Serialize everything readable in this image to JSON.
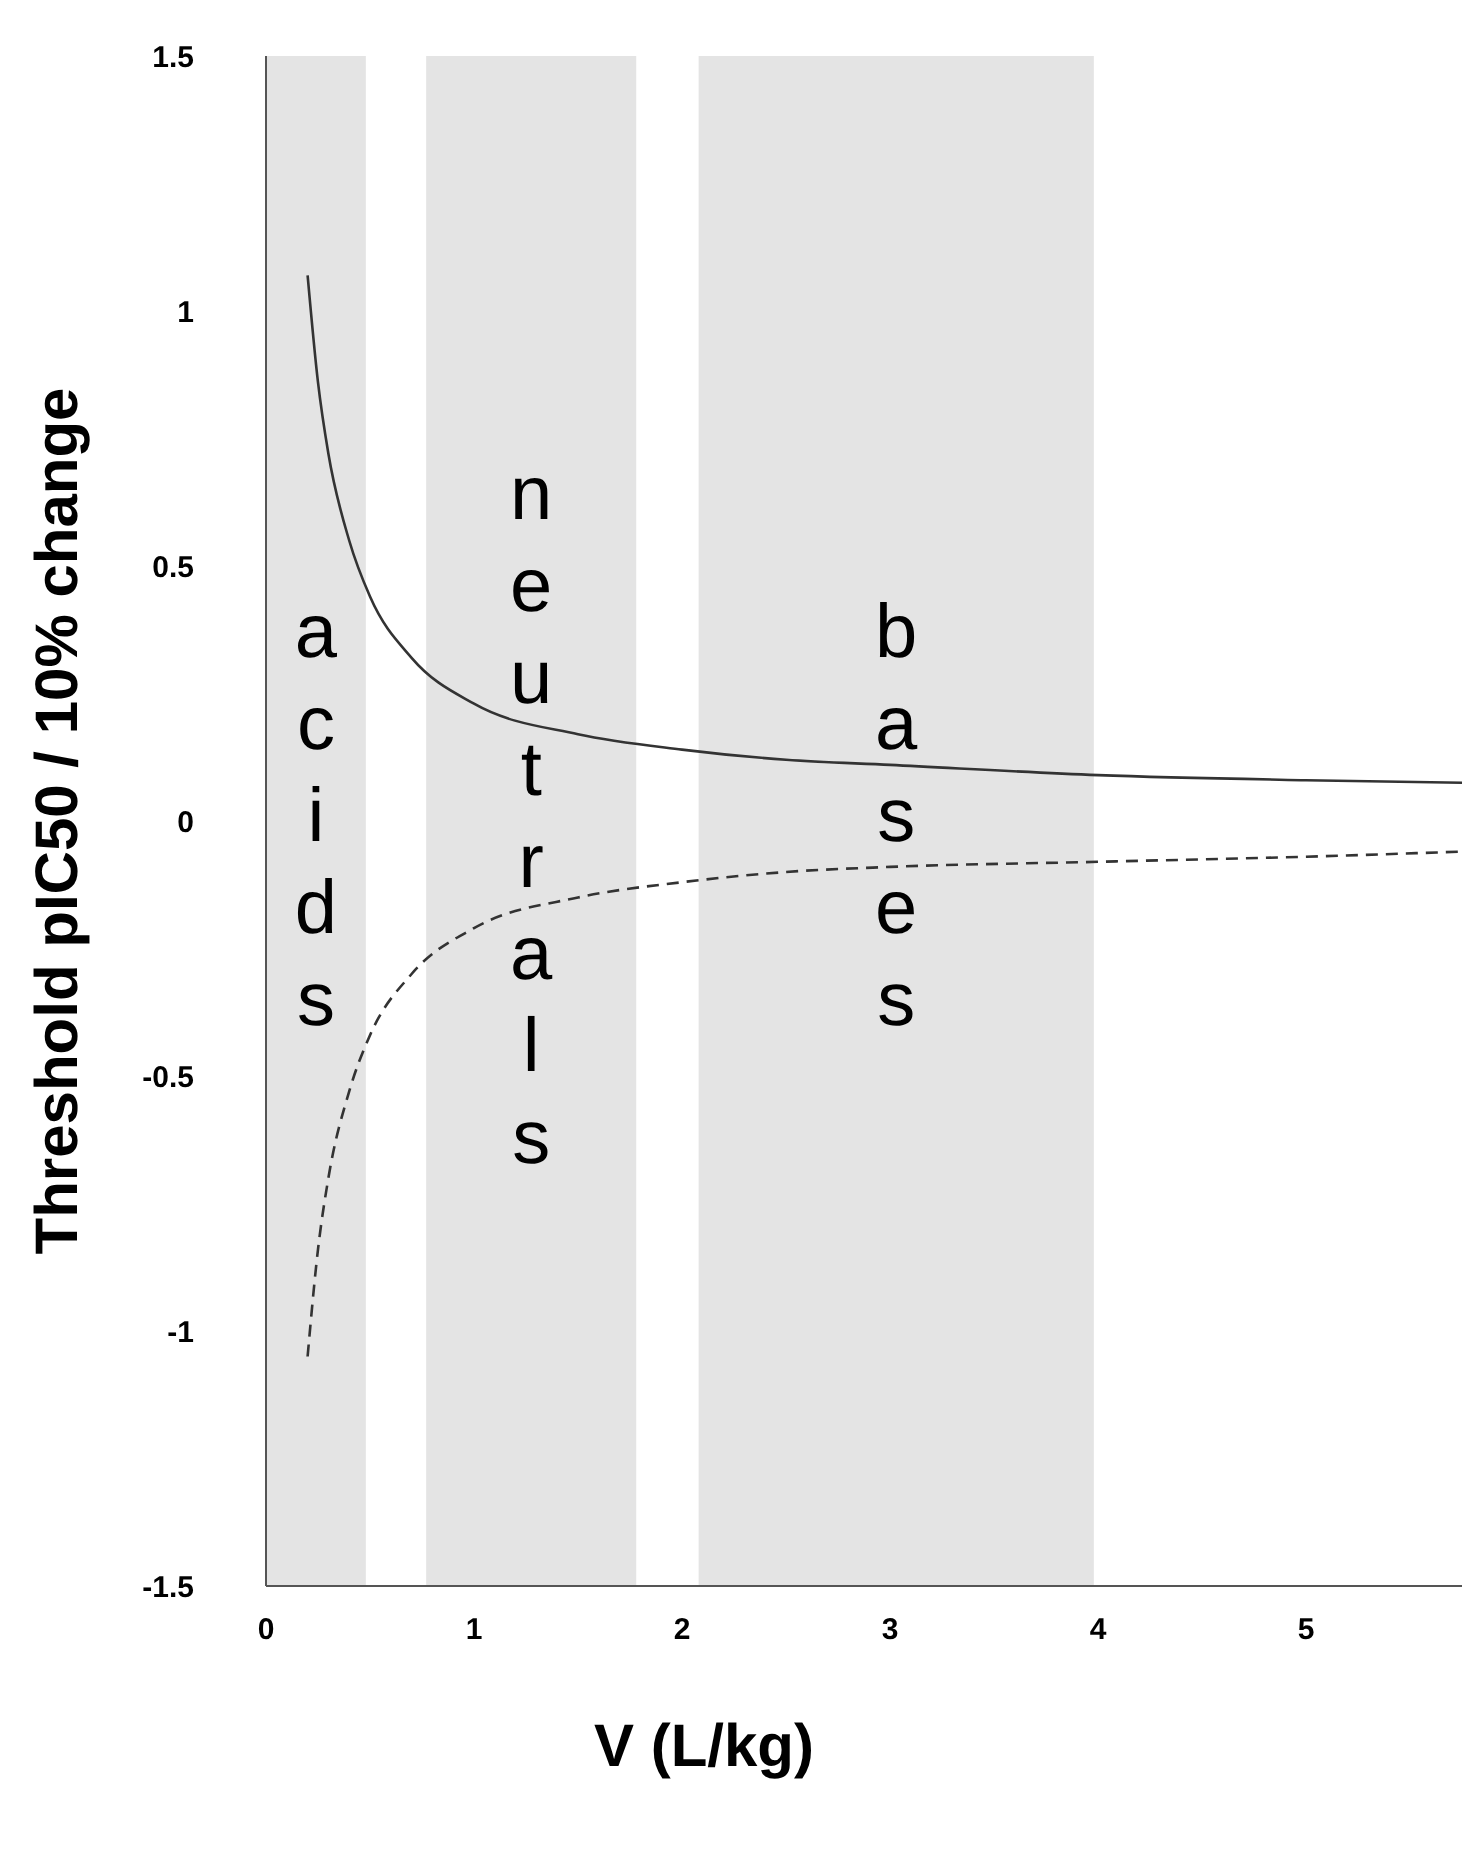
{
  "chart_data": {
    "type": "line",
    "xlabel": "V (L/kg)",
    "ylabel": "Threshold pIC50 / 10% change",
    "x": [
      0.2,
      0.25,
      0.3,
      0.4,
      0.5,
      0.7,
      1.0,
      1.5,
      2.0,
      2.5,
      3.0,
      4.0,
      5.0,
      5.75
    ],
    "series": [
      {
        "color": "#333333",
        "line_style": "solid",
        "values": [
          1.07,
          0.86,
          0.72,
          0.55,
          0.44,
          0.32,
          0.23,
          0.17,
          0.14,
          0.12,
          0.11,
          0.09,
          0.08,
          0.075
        ]
      },
      {
        "color": "#333333",
        "line_style": "dashed",
        "values": [
          -1.05,
          -0.84,
          -0.7,
          -0.53,
          -0.42,
          -0.3,
          -0.21,
          -0.15,
          -0.12,
          -0.1,
          -0.09,
          -0.08,
          -0.07,
          -0.06
        ]
      }
    ],
    "xlim": [
      0,
      5.75
    ],
    "xticks": [
      0,
      1,
      2,
      3,
      4,
      5
    ],
    "ylim": [
      -1.5,
      1.5
    ],
    "yticks": [
      -1.5,
      -1,
      -0.5,
      0,
      0.5,
      1,
      1.5
    ],
    "grid": false,
    "marker": "none",
    "bands": [
      {
        "axis": "x",
        "from": 0,
        "to": 0.48,
        "label": "acids",
        "color": "#e4e4e4"
      },
      {
        "axis": "x",
        "from": 0.77,
        "to": 1.78,
        "label": "neutrals",
        "color": "#e4e4e4"
      },
      {
        "axis": "x",
        "from": 2.08,
        "to": 3.98,
        "label": "bases",
        "color": "#e4e4e4"
      }
    ]
  }
}
